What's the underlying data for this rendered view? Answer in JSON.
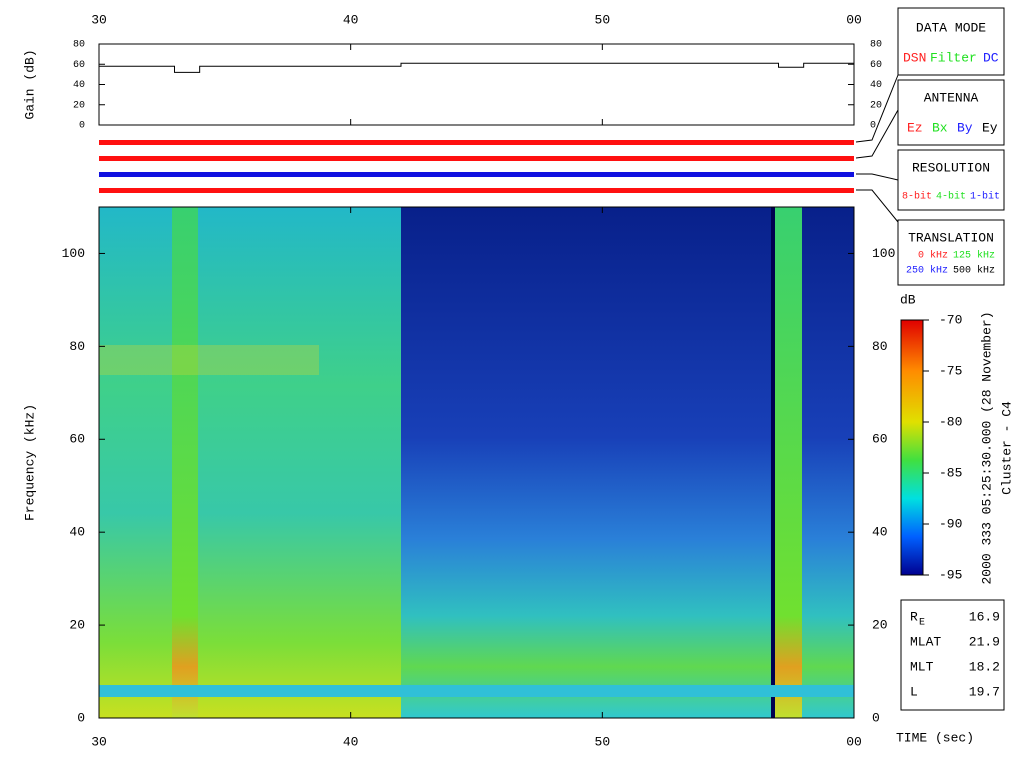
{
  "chart_data": [
    {
      "type": "line",
      "ylabel": "Gain (dB)",
      "x": [
        30,
        33,
        33,
        34,
        34,
        42,
        42,
        57,
        57,
        58,
        58,
        60
      ],
      "values": [
        58,
        58,
        52,
        52,
        58,
        58,
        61,
        61,
        57,
        57,
        61,
        61
      ],
      "color": "#000000",
      "xlim": [
        30,
        60
      ],
      "xticks": [
        30,
        40,
        50,
        {
          "value": 60,
          "label": "00"
        }
      ],
      "ylim": [
        0,
        80
      ],
      "yticks": [
        0,
        20,
        40,
        60,
        80
      ]
    },
    {
      "type": "spectrogram",
      "ylabel": "Frequency (kHz)",
      "xlabel": "TIME (sec)",
      "xlim": [
        30,
        60
      ],
      "xticks": [
        30,
        40,
        50,
        {
          "value": 60,
          "label": "00"
        }
      ],
      "ylim": [
        0,
        110
      ],
      "yticks": [
        0,
        20,
        40,
        60,
        80,
        100
      ],
      "colorbar": {
        "label": "dB",
        "lim": [
          -95,
          -70
        ],
        "ticks": [
          -95,
          -90,
          -85,
          -80,
          -75,
          -70
        ]
      },
      "annotation": "2000 333 05:25:30.000 (28 November)",
      "spacecraft": "Cluster - C4"
    }
  ],
  "panels": {
    "data_mode": {
      "title": "DATA MODE",
      "items": [
        "DSN",
        "Filter",
        "DC"
      ]
    },
    "antenna": {
      "title": "ANTENNA",
      "items": [
        "Ez",
        "Bx",
        "By",
        "Ey"
      ]
    },
    "resolution": {
      "title": "RESOLUTION",
      "items": [
        "8-bit",
        "4-bit",
        "1-bit"
      ]
    },
    "translation": {
      "title": "TRANSLATION",
      "items": [
        "0 kHz",
        "125 kHz",
        "250 kHz",
        "500 kHz"
      ]
    }
  },
  "info": [
    {
      "label": "R",
      "sub": "E",
      "value": 16.9
    },
    {
      "label": "MLAT",
      "value": 21.9
    },
    {
      "label": "MLT",
      "value": 18.2
    },
    {
      "label": "L",
      "value": 19.7
    }
  ]
}
